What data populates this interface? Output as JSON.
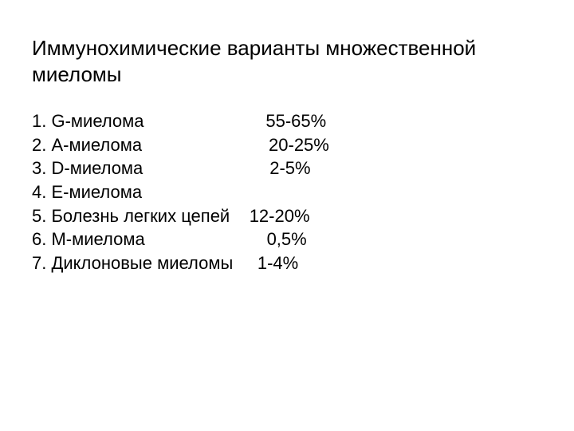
{
  "title": "Иммунохимические варианты множественной миеломы",
  "title_fontsize": 26,
  "list_fontsize": 22,
  "text_color": "#000000",
  "background_color": "#ffffff",
  "items": [
    {
      "number": "1.",
      "label": "G-миелома",
      "gap": "                         ",
      "value": "55-65%"
    },
    {
      "number": "2.",
      "label": "А-миелома",
      "gap": "                          ",
      "value": "20-25%"
    },
    {
      "number": "3.",
      "label": "D-миелома",
      "gap": "                          ",
      "value": "2-5%"
    },
    {
      "number": "4.",
      "label": "Е-миелома",
      "gap": "",
      "value": ""
    },
    {
      "number": "5.",
      "label": "Болезнь легких цепей",
      "gap": "    ",
      "value": "12-20%"
    },
    {
      "number": "6.",
      "label": "М-миелома",
      "gap": "                         ",
      "value": "0,5%"
    },
    {
      "number": "7.",
      "label": "Диклоновые миеломы",
      "gap": "     ",
      "value": "1-4%"
    }
  ]
}
